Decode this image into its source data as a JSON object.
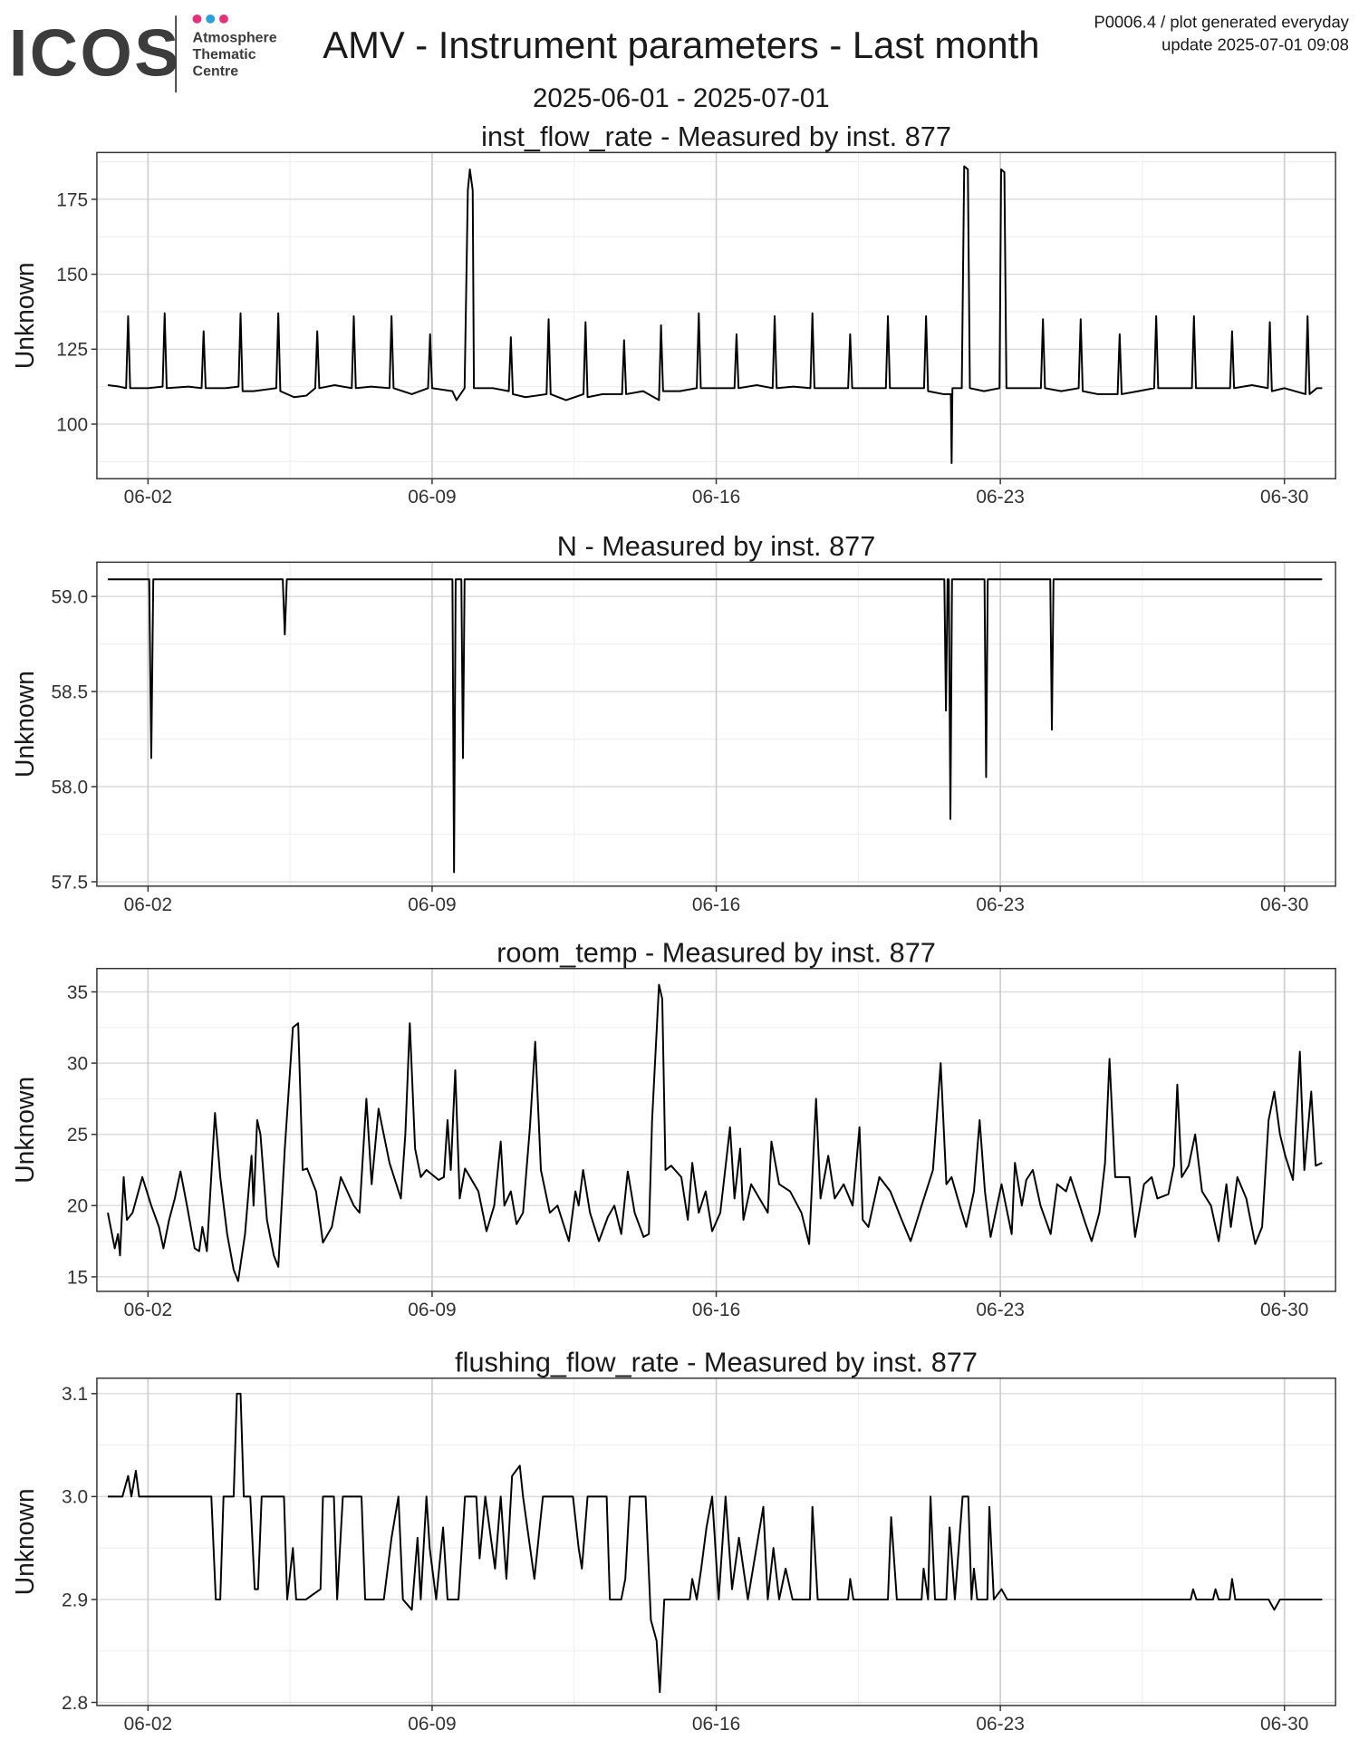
{
  "header": {
    "logo_text": "ICOS",
    "logo_sub": [
      "Atmosphere",
      "Thematic",
      "Centre"
    ],
    "title": "AMV - Instrument parameters - Last month",
    "subtitle": "2025-06-01 - 2025-07-01",
    "note": "P0006.4 / plot generated everyday",
    "update": "update  2025-07-01 09:08"
  },
  "chart_data": [
    {
      "type": "line",
      "title": "inst_flow_rate - Measured by inst. 877",
      "y_label": "Unknown",
      "color": "#000000",
      "grid": true,
      "xlim": [
        0.74,
        31.26
      ],
      "xticks": [
        {
          "value": 2,
          "label": "06-02"
        },
        {
          "value": 9,
          "label": "06-09"
        },
        {
          "value": 16,
          "label": "06-16"
        },
        {
          "value": 23,
          "label": "06-23"
        },
        {
          "value": 30,
          "label": "06-30"
        }
      ],
      "ylim": [
        81.8,
        190.6
      ],
      "yticks": [
        100,
        125,
        150,
        175
      ],
      "x": [
        1.01,
        1.3,
        1.46,
        1.51,
        1.56,
        2.0,
        2.36,
        2.41,
        2.46,
        3.0,
        3.32,
        3.37,
        3.42,
        3.9,
        4.23,
        4.28,
        4.33,
        4.6,
        5.16,
        5.21,
        5.26,
        5.6,
        5.9,
        6.12,
        6.17,
        6.22,
        6.6,
        7.02,
        7.07,
        7.12,
        7.5,
        7.95,
        8.0,
        8.05,
        8.5,
        8.9,
        8.95,
        9.0,
        9.5,
        9.6,
        9.8,
        9.88,
        9.93,
        10.0,
        10.03,
        10.5,
        10.89,
        10.94,
        10.99,
        11.3,
        11.82,
        11.87,
        11.92,
        12.3,
        12.73,
        12.78,
        12.83,
        13.2,
        13.68,
        13.73,
        13.78,
        14.2,
        14.59,
        14.64,
        14.69,
        15.1,
        15.52,
        15.57,
        15.62,
        16.0,
        16.45,
        16.5,
        16.55,
        17.0,
        17.39,
        17.44,
        17.49,
        17.9,
        18.32,
        18.37,
        18.42,
        18.8,
        19.25,
        19.3,
        19.35,
        19.8,
        20.18,
        20.23,
        20.28,
        20.7,
        21.12,
        21.17,
        21.22,
        21.6,
        21.78,
        21.8,
        21.82,
        22.05,
        22.11,
        22.2,
        22.25,
        22.6,
        22.98,
        23.02,
        23.1,
        23.15,
        23.6,
        24.0,
        24.05,
        24.1,
        24.5,
        24.93,
        24.98,
        25.03,
        25.4,
        25.89,
        25.94,
        25.99,
        26.4,
        26.79,
        26.84,
        26.89,
        27.3,
        27.72,
        27.77,
        27.82,
        28.2,
        28.66,
        28.71,
        28.76,
        29.2,
        29.59,
        29.64,
        29.69,
        30.0,
        30.52,
        30.57,
        30.62,
        30.8,
        30.93
      ],
      "values": [
        113,
        112.5,
        112,
        136,
        112,
        112,
        112.5,
        137,
        112,
        112.5,
        112,
        131,
        112,
        112,
        112.5,
        137,
        111,
        111,
        112,
        137,
        111,
        109,
        109.5,
        112,
        131,
        112,
        113,
        112,
        136,
        112,
        112.5,
        112,
        136,
        112,
        110,
        112,
        130,
        112,
        111,
        108,
        112,
        178,
        185,
        178,
        112,
        112,
        111,
        129,
        110,
        109,
        110,
        135,
        110,
        108,
        110,
        134,
        109,
        110,
        110,
        128,
        110,
        111,
        108,
        133,
        111,
        111,
        112,
        137,
        112,
        112,
        112,
        130,
        112,
        113,
        112,
        136,
        112,
        112.5,
        112,
        137,
        112,
        112,
        112,
        130,
        112,
        112,
        112,
        136,
        112,
        112,
        112,
        136,
        111,
        110,
        110,
        87,
        112,
        112,
        186,
        185,
        112,
        111,
        112,
        185,
        184,
        112,
        112,
        112,
        135,
        112,
        111,
        112,
        135,
        111,
        110,
        110,
        130,
        110,
        111,
        112,
        136,
        112,
        112,
        112,
        136,
        112,
        112,
        112,
        131,
        112,
        113,
        112,
        134,
        111,
        112,
        110,
        136,
        110,
        112,
        112
      ]
    },
    {
      "type": "line",
      "title": "N - Measured by inst. 877",
      "y_label": "Unknown",
      "color": "#000000",
      "grid": true,
      "xlim": [
        0.74,
        31.26
      ],
      "xticks": [
        {
          "value": 2,
          "label": "06-02"
        },
        {
          "value": 9,
          "label": "06-09"
        },
        {
          "value": 16,
          "label": "06-16"
        },
        {
          "value": 23,
          "label": "06-23"
        },
        {
          "value": 30,
          "label": "06-30"
        }
      ],
      "ylim": [
        57.477,
        59.18
      ],
      "yticks": [
        57.5,
        {
          "value": 58,
          "label": "58.0"
        },
        58.5,
        {
          "value": 59,
          "label": "59.0"
        }
      ],
      "x": [
        1.01,
        2.03,
        2.08,
        2.13,
        5.32,
        5.37,
        5.42,
        9.5,
        9.54,
        9.58,
        9.72,
        9.76,
        9.8,
        21.62,
        21.66,
        21.7,
        21.73,
        21.77,
        21.81,
        22.61,
        22.65,
        22.69,
        24.23,
        24.27,
        24.31,
        30.93
      ],
      "values": [
        59.09,
        59.09,
        58.15,
        59.09,
        59.09,
        58.8,
        59.09,
        59.09,
        57.55,
        59.09,
        59.09,
        58.15,
        59.09,
        59.09,
        58.4,
        59.09,
        59.09,
        57.83,
        59.09,
        59.09,
        58.05,
        59.09,
        59.09,
        58.3,
        59.09,
        59.09
      ]
    },
    {
      "type": "line",
      "title": "room_temp - Measured by inst. 877",
      "y_label": "Unknown",
      "color": "#000000",
      "grid": true,
      "xlim": [
        0.74,
        31.26
      ],
      "xticks": [
        {
          "value": 2,
          "label": "06-02"
        },
        {
          "value": 9,
          "label": "06-09"
        },
        {
          "value": 16,
          "label": "06-16"
        },
        {
          "value": 23,
          "label": "06-23"
        },
        {
          "value": 30,
          "label": "06-30"
        }
      ],
      "ylim": [
        13.98,
        36.64
      ],
      "yticks": [
        15,
        20,
        25,
        30,
        35
      ],
      "x": [
        1.01,
        1.18,
        1.26,
        1.31,
        1.4,
        1.48,
        1.62,
        1.86,
        2.08,
        2.27,
        2.38,
        2.52,
        2.66,
        2.8,
        2.96,
        3.15,
        3.26,
        3.34,
        3.45,
        3.65,
        3.78,
        3.95,
        4.11,
        4.22,
        4.39,
        4.55,
        4.6,
        4.69,
        4.77,
        4.93,
        5.1,
        5.21,
        5.37,
        5.57,
        5.7,
        5.81,
        5.92,
        6.14,
        6.31,
        6.53,
        6.75,
        7.07,
        7.21,
        7.38,
        7.51,
        7.68,
        7.95,
        8.23,
        8.34,
        8.45,
        8.58,
        8.72,
        8.86,
        9.16,
        9.29,
        9.38,
        9.46,
        9.57,
        9.68,
        9.81,
        10.14,
        10.34,
        10.53,
        10.69,
        10.78,
        10.94,
        11.08,
        11.24,
        11.41,
        11.54,
        11.68,
        11.9,
        12.09,
        12.37,
        12.53,
        12.61,
        12.72,
        12.89,
        13.11,
        13.33,
        13.49,
        13.66,
        13.82,
        13.99,
        14.21,
        14.34,
        14.42,
        14.59,
        14.67,
        14.75,
        14.89,
        15.14,
        15.3,
        15.41,
        15.57,
        15.74,
        15.9,
        16.1,
        16.34,
        16.45,
        16.59,
        16.67,
        16.86,
        17.27,
        17.36,
        17.55,
        17.82,
        18.1,
        18.29,
        18.46,
        18.57,
        18.76,
        18.92,
        19.14,
        19.36,
        19.53,
        19.61,
        19.75,
        20.02,
        20.29,
        20.57,
        20.79,
        21.06,
        21.34,
        21.53,
        21.67,
        21.8,
        22.0,
        22.16,
        22.35,
        22.49,
        22.62,
        22.76,
        23.03,
        23.28,
        23.36,
        23.53,
        23.64,
        23.8,
        23.99,
        24.24,
        24.4,
        24.62,
        24.73,
        24.9,
        25.09,
        25.25,
        25.44,
        25.58,
        25.69,
        25.83,
        26.05,
        26.18,
        26.32,
        26.54,
        26.73,
        26.87,
        27.14,
        27.28,
        27.36,
        27.47,
        27.64,
        27.8,
        27.97,
        28.19,
        28.38,
        28.57,
        28.68,
        28.84,
        29.06,
        29.28,
        29.45,
        29.61,
        29.75,
        29.89,
        30.02,
        30.21,
        30.38,
        30.49,
        30.66,
        30.77,
        30.93
      ],
      "values": [
        19.5,
        17,
        18,
        16.5,
        22,
        19,
        19.5,
        22,
        20,
        18.5,
        17,
        19,
        20.5,
        22.4,
        20,
        17,
        16.8,
        18.5,
        16.8,
        26.5,
        22,
        18,
        15.5,
        14.7,
        18,
        23.5,
        20,
        26,
        25,
        19,
        16.5,
        15.7,
        24,
        32.5,
        32.8,
        22.5,
        22.6,
        21,
        17.4,
        18.5,
        22,
        20,
        19.5,
        27.5,
        21.5,
        26.8,
        23,
        20.5,
        25,
        32.8,
        24,
        22,
        22.5,
        21.8,
        22,
        26,
        22.5,
        29.5,
        20.5,
        22.6,
        21,
        18.2,
        20,
        24.5,
        20,
        21,
        18.7,
        19.5,
        25.5,
        31.5,
        22.5,
        19.5,
        20,
        17.5,
        21,
        20,
        22.5,
        19.5,
        17.5,
        19.2,
        20,
        18,
        22.4,
        19.5,
        17.8,
        18,
        26,
        35.5,
        34.5,
        22.5,
        22.8,
        22,
        19,
        23,
        19.5,
        21,
        18.2,
        19.5,
        25.5,
        20.5,
        24,
        19,
        21.5,
        19.5,
        24.5,
        21.5,
        21,
        19.5,
        17.3,
        27.5,
        20.5,
        23.5,
        20.5,
        21.5,
        20,
        25.5,
        19,
        18.5,
        22,
        21,
        19,
        17.5,
        20,
        22.5,
        30,
        21.5,
        22,
        20,
        18.5,
        21,
        26,
        21,
        17.8,
        21.5,
        18,
        23,
        20,
        21.8,
        22.5,
        20,
        18,
        21.5,
        21,
        22,
        20.5,
        18.8,
        17.5,
        19.5,
        23,
        30.3,
        22,
        22,
        22,
        17.8,
        21.5,
        22,
        20.5,
        20.8,
        22.8,
        28.5,
        22,
        22.8,
        25,
        21,
        20,
        17.5,
        21.5,
        18.5,
        22,
        20.5,
        17.3,
        18.5,
        26,
        28,
        25,
        23.5,
        21.8,
        30.8,
        22.5,
        28,
        22.8,
        23
      ]
    },
    {
      "type": "line",
      "title": "flushing_flow_rate - Measured by inst. 877",
      "y_label": "Unknown",
      "color": "#000000",
      "grid": true,
      "xlim": [
        0.74,
        31.26
      ],
      "xticks": [
        {
          "value": 2,
          "label": "06-02"
        },
        {
          "value": 9,
          "label": "06-09"
        },
        {
          "value": 16,
          "label": "06-16"
        },
        {
          "value": 23,
          "label": "06-23"
        },
        {
          "value": 30,
          "label": "06-30"
        }
      ],
      "ylim": [
        2.797,
        3.115
      ],
      "yticks": [
        2.8,
        2.9,
        {
          "value": 3,
          "label": "3.0"
        },
        3.1
      ],
      "x": [
        1.01,
        1.37,
        1.51,
        1.59,
        1.7,
        1.78,
        3.56,
        3.67,
        3.78,
        3.86,
        4.11,
        4.19,
        4.28,
        4.36,
        4.52,
        4.63,
        4.71,
        4.8,
        5.35,
        5.43,
        5.57,
        5.65,
        5.89,
        6.25,
        6.31,
        6.58,
        6.66,
        6.8,
        7.26,
        7.35,
        7.81,
        8.0,
        8.17,
        8.28,
        8.5,
        8.64,
        8.72,
        8.86,
        8.94,
        9.1,
        9.27,
        9.38,
        9.65,
        9.81,
        10.09,
        10.17,
        10.31,
        10.55,
        10.69,
        10.83,
        10.97,
        11.16,
        11.24,
        11.52,
        11.65,
        11.73,
        12.47,
        12.61,
        12.69,
        12.83,
        13.3,
        13.38,
        13.66,
        13.76,
        13.87,
        14.26,
        14.39,
        14.53,
        14.61,
        14.72,
        15.35,
        15.41,
        15.52,
        15.63,
        15.76,
        15.9,
        16.06,
        16.23,
        16.39,
        16.56,
        16.78,
        16.99,
        17.16,
        17.27,
        17.41,
        17.55,
        17.71,
        17.88,
        18.31,
        18.37,
        18.5,
        19.25,
        19.3,
        19.38,
        20.23,
        20.31,
        20.45,
        21.06,
        21.11,
        21.22,
        21.28,
        21.39,
        21.67,
        21.75,
        21.88,
        22.07,
        22.21,
        22.29,
        22.35,
        22.43,
        22.68,
        22.73,
        22.84,
        23.03,
        23.17,
        27.69,
        27.75,
        27.83,
        28.24,
        28.3,
        28.38,
        28.65,
        28.71,
        28.79,
        29.61,
        29.75,
        29.89,
        30.93
      ],
      "values": [
        3.0,
        3.0,
        3.02,
        3.0,
        3.025,
        3.0,
        3.0,
        2.9,
        2.9,
        3.0,
        3.0,
        3.1,
        3.1,
        3.0,
        3.0,
        2.91,
        2.91,
        3.0,
        3.0,
        2.9,
        2.95,
        2.9,
        2.9,
        2.91,
        3.0,
        3.0,
        2.9,
        3.0,
        3.0,
        2.9,
        2.9,
        2.96,
        3.0,
        2.9,
        2.89,
        2.96,
        2.9,
        3.0,
        2.95,
        2.9,
        2.97,
        2.9,
        2.9,
        3.0,
        3.0,
        2.94,
        3.0,
        2.93,
        3.0,
        2.92,
        3.02,
        3.03,
        3.0,
        2.92,
        2.97,
        3.0,
        3.0,
        2.95,
        2.93,
        3.0,
        3.0,
        2.9,
        2.9,
        2.92,
        3.0,
        3.0,
        2.88,
        2.86,
        2.81,
        2.9,
        2.9,
        2.92,
        2.9,
        2.93,
        2.97,
        3.0,
        2.9,
        3.0,
        2.91,
        2.96,
        2.9,
        2.95,
        2.99,
        2.9,
        2.95,
        2.9,
        2.93,
        2.9,
        2.9,
        2.99,
        2.9,
        2.9,
        2.92,
        2.9,
        2.9,
        2.98,
        2.9,
        2.9,
        2.93,
        2.9,
        3.0,
        2.9,
        2.9,
        2.97,
        2.9,
        3.0,
        3.0,
        2.9,
        2.93,
        2.9,
        2.9,
        2.99,
        2.9,
        2.91,
        2.9,
        2.9,
        2.91,
        2.9,
        2.9,
        2.91,
        2.9,
        2.9,
        2.92,
        2.9,
        2.9,
        2.89,
        2.9,
        2.9
      ]
    }
  ]
}
